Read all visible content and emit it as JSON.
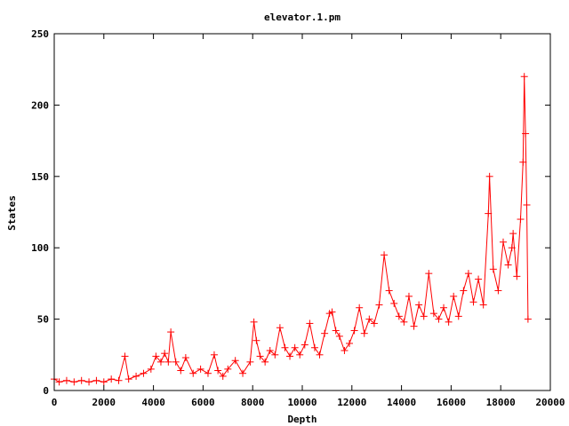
{
  "chart_data": {
    "type": "line",
    "title": "elevator.1.pm",
    "xlabel": "Depth",
    "ylabel": "States",
    "xlim": [
      0,
      20000
    ],
    "ylim": [
      0,
      250
    ],
    "x_ticks": [
      0,
      2000,
      4000,
      6000,
      8000,
      10000,
      12000,
      14000,
      16000,
      18000,
      20000
    ],
    "y_ticks": [
      0,
      50,
      100,
      150,
      200,
      250
    ],
    "x_tick_labels": [
      "0",
      "2000",
      "4000",
      "6000",
      "8000",
      "10000",
      "12000",
      "14000",
      "16000",
      "18000",
      "20000"
    ],
    "y_tick_labels": [
      "0",
      "50",
      "100",
      "150",
      "200",
      "250"
    ],
    "grid": false,
    "legend": "none",
    "marker": "plus",
    "color": "#ff0000",
    "series": [
      {
        "x": [
          0,
          200,
          500,
          800,
          1100,
          1400,
          1700,
          2000,
          2300,
          2600,
          2850,
          3000,
          3300,
          3600,
          3900,
          4100,
          4300,
          4450,
          4600,
          4700,
          4900,
          5100,
          5300,
          5600,
          5900,
          6200,
          6450,
          6600,
          6800,
          7000,
          7300,
          7600,
          7900,
          8050,
          8150,
          8300,
          8500,
          8700,
          8900,
          9100,
          9300,
          9500,
          9700,
          9900,
          10100,
          10300,
          10500,
          10700,
          10900,
          11100,
          11200,
          11350,
          11500,
          11700,
          11900,
          12100,
          12300,
          12500,
          12700,
          12900,
          13100,
          13300,
          13500,
          13700,
          13900,
          14100,
          14300,
          14500,
          14700,
          14900,
          15100,
          15300,
          15500,
          15700,
          15900,
          16100,
          16300,
          16500,
          16700,
          16900,
          17100,
          17300,
          17500,
          17550,
          17700,
          17900,
          18100,
          18300,
          18450,
          18500,
          18650,
          18800,
          18900,
          18950,
          19000,
          19050,
          19100
        ],
        "y": [
          8,
          6,
          7,
          6,
          7,
          6,
          7,
          6,
          8,
          7,
          24,
          8,
          10,
          12,
          15,
          24,
          20,
          26,
          20,
          41,
          20,
          14,
          23,
          12,
          15,
          12,
          25,
          14,
          10,
          15,
          21,
          12,
          20,
          48,
          35,
          24,
          20,
          28,
          25,
          44,
          30,
          24,
          30,
          25,
          32,
          47,
          30,
          25,
          40,
          54,
          55,
          42,
          38,
          28,
          33,
          42,
          58,
          40,
          50,
          47,
          60,
          95,
          70,
          61,
          52,
          48,
          66,
          45,
          60,
          52,
          82,
          54,
          50,
          58,
          48,
          66,
          52,
          70,
          82,
          62,
          78,
          60,
          124,
          150,
          85,
          70,
          104,
          88,
          100,
          110,
          80,
          120,
          160,
          220,
          180,
          130,
          50
        ]
      }
    ]
  }
}
